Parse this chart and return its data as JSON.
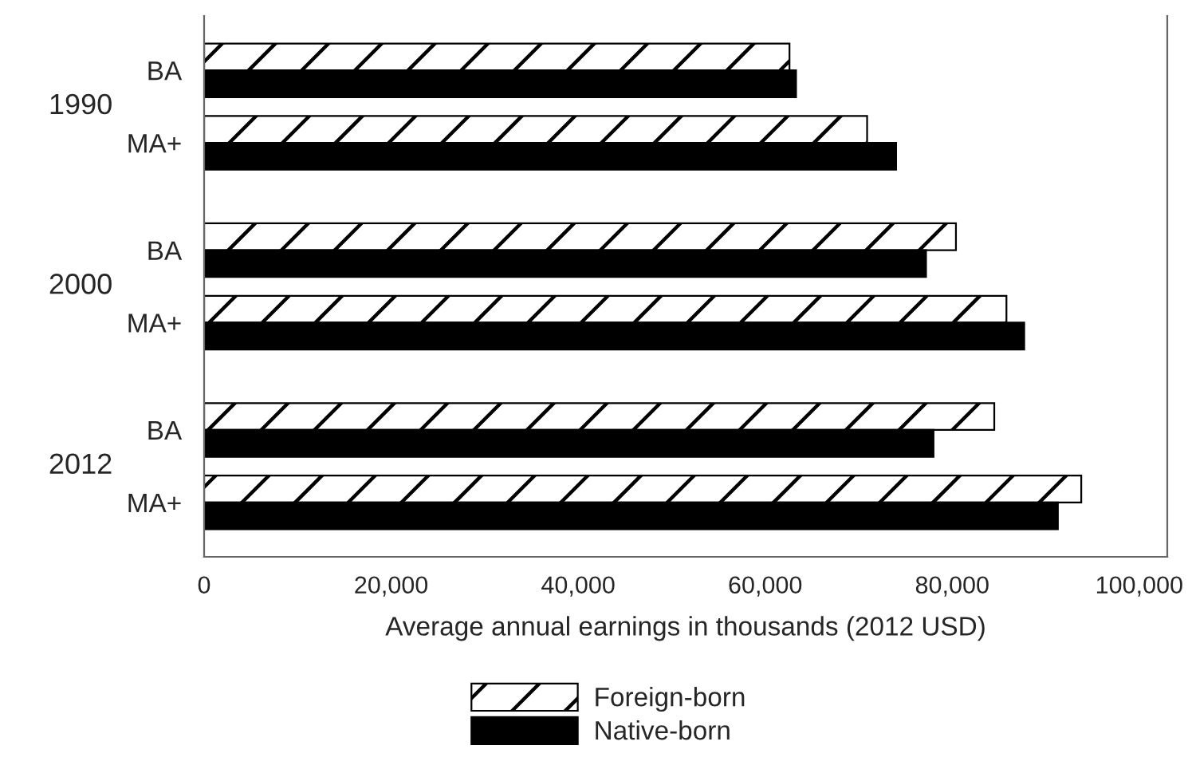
{
  "chart_data": {
    "type": "bar",
    "orientation": "horizontal",
    "categories": [
      "BA",
      "MA+",
      "BA",
      "MA+",
      "BA",
      "MA+"
    ],
    "annotations": [
      "1990",
      "2000",
      "2012"
    ],
    "xlabel": "Average annual earnings in thousands (2012 USD)",
    "series": [
      {
        "name": "Foreign-born",
        "color": "#ffffff",
        "values": [
          62600,
          70900,
          80400,
          85800,
          84500,
          93800
        ]
      },
      {
        "name": "Native-born",
        "color": "#000000",
        "values": [
          63300,
          74000,
          77200,
          87700,
          78000,
          91300
        ]
      }
    ],
    "xlim": [
      0,
      103000
    ],
    "xticks": [
      {
        "value": 0,
        "label": "0"
      },
      {
        "value": 20000,
        "label": "20,000"
      },
      {
        "value": 40000,
        "label": "40,000"
      },
      {
        "value": 60000,
        "label": "60,000"
      },
      {
        "value": 80000,
        "label": "80,000"
      },
      {
        "value": 100000,
        "label": "100,000"
      }
    ],
    "grid": false,
    "legend": "bottom"
  }
}
